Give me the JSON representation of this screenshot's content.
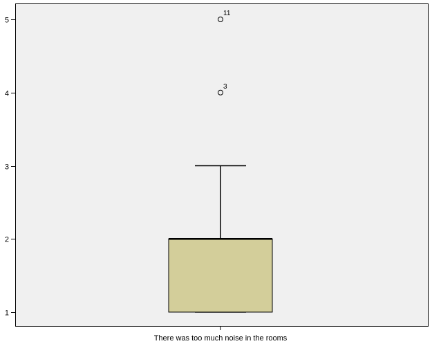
{
  "chart_data": {
    "type": "boxplot",
    "title": "",
    "xlabel": "There was too much noise in the rooms",
    "ylabel": "",
    "ylim": [
      0.8,
      5.2
    ],
    "yticks": [
      1,
      2,
      3,
      4,
      5
    ],
    "grid": false,
    "series": [
      {
        "name": "There was too much noise in the rooms",
        "min": 1,
        "q1": 1,
        "median": 2,
        "q3": 2,
        "whisker_low": 1,
        "whisker_high": 3,
        "outliers": [
          {
            "value": 5,
            "label": "11"
          },
          {
            "value": 4,
            "label": "3"
          }
        ]
      }
    ],
    "colors": {
      "plot_background": "#f0f0f0",
      "box_fill": "#d3ce9a",
      "stroke": "#000000"
    }
  }
}
